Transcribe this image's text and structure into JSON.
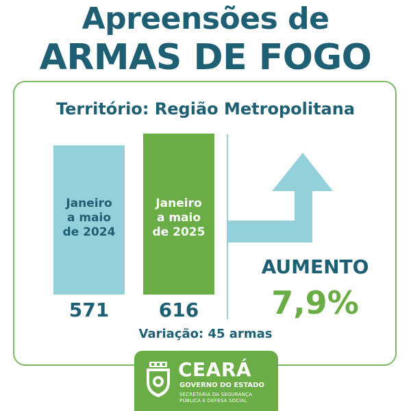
{
  "title": {
    "line1": "Apreensões de",
    "line2": "ARMAS DE FOGO"
  },
  "territory": "Território: Região Metropolitana",
  "variation": "Variação: 45 armas",
  "highlight": {
    "label": "AUMENTO",
    "value": "7,9%"
  },
  "colors": {
    "title": "#1f5f73",
    "bar_2024": "#93d0d9",
    "bar_2025": "#6aac45",
    "arrow": "#93d0d9",
    "accent_green": "#6aac45"
  },
  "chart_data": {
    "type": "bar",
    "categories": [
      "Janeiro a maio de 2024",
      "Janeiro a maio de 2025"
    ],
    "category_lines": [
      [
        "Janeiro",
        "a maio",
        "de 2024"
      ],
      [
        "Janeiro",
        "a maio",
        "de 2025"
      ]
    ],
    "values": [
      571,
      616
    ],
    "value_labels": [
      "571",
      "616"
    ],
    "ylim": [
      0,
      616
    ],
    "grid": false
  },
  "footer": {
    "name": "CEARÁ",
    "government": "GOVERNO DO ESTADO",
    "secretariat_line1": "SECRETARIA DA SEGURANÇA",
    "secretariat_line2": "PÚBLICA E DEFESA SOCIAL",
    "seal_icon": "ceara-coat-of-arms-icon"
  }
}
